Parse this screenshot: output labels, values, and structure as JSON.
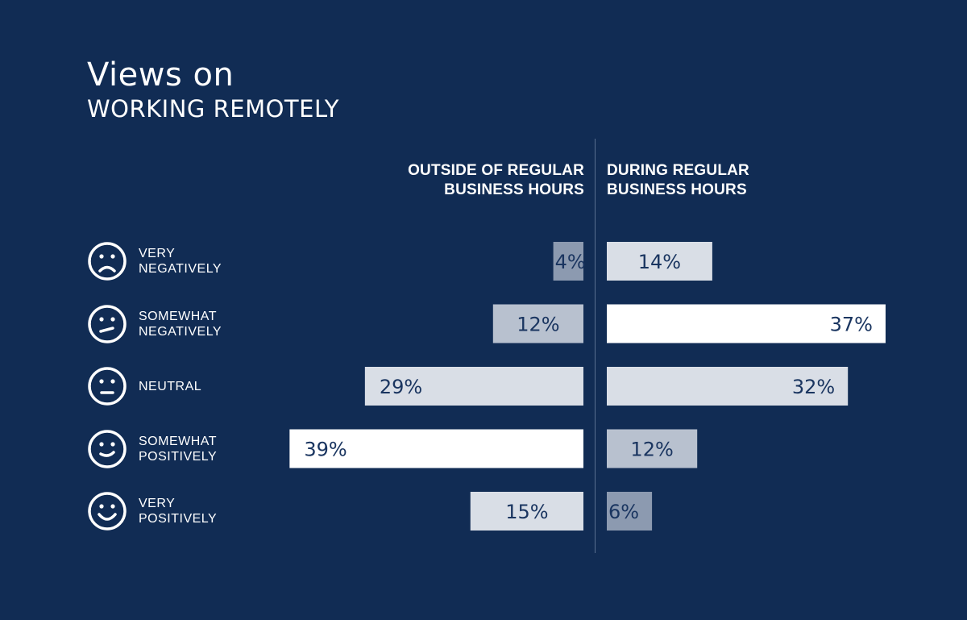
{
  "title": "Views on",
  "subtitle": "WORKING REMOTELY",
  "columns": {
    "left": [
      "OUTSIDE OF REGULAR",
      "BUSINESS HOURS"
    ],
    "right": [
      "DURING REGULAR",
      "BUSINESS HOURS"
    ]
  },
  "rows": [
    {
      "label_lines": [
        "VERY",
        "NEGATIVELY"
      ],
      "icon": "very-sad-face-icon"
    },
    {
      "label_lines": [
        "SOMEWHAT",
        "NEGATIVELY"
      ],
      "icon": "slightly-sad-face-icon"
    },
    {
      "label_lines": [
        "NEUTRAL"
      ],
      "icon": "neutral-face-icon"
    },
    {
      "label_lines": [
        "SOMEWHAT",
        "POSITIVELY"
      ],
      "icon": "slight-smile-face-icon"
    },
    {
      "label_lines": [
        "VERY",
        "POSITIVELY"
      ],
      "icon": "big-smile-face-icon"
    }
  ],
  "colors": {
    "background": "#112c54",
    "low": "#8c9ab0",
    "mid": "#b8c1cf",
    "high": "#d9dee6",
    "top": "#ffffff",
    "bar_text": "#1a3560"
  },
  "chart_data": {
    "type": "bar",
    "categories": [
      "VERY NEGATIVELY",
      "SOMEWHAT NEGATIVELY",
      "NEUTRAL",
      "SOMEWHAT POSITIVELY",
      "VERY POSITIVELY"
    ],
    "series": [
      {
        "name": "OUTSIDE OF REGULAR BUSINESS HOURS",
        "values": [
          4,
          12,
          29,
          39,
          15
        ],
        "labels": [
          "4%",
          "12%",
          "29%",
          "39%",
          "15%"
        ],
        "shade": [
          "low",
          "mid",
          "high",
          "top",
          "high"
        ]
      },
      {
        "name": "DURING REGULAR BUSINESS HOURS",
        "values": [
          14,
          37,
          32,
          12,
          6
        ],
        "labels": [
          "14%",
          "37%",
          "32%",
          "12%",
          "6%"
        ],
        "shade": [
          "high",
          "top",
          "high",
          "mid",
          "low"
        ]
      }
    ],
    "unit": "%",
    "orientation": "diverging-horizontal"
  }
}
